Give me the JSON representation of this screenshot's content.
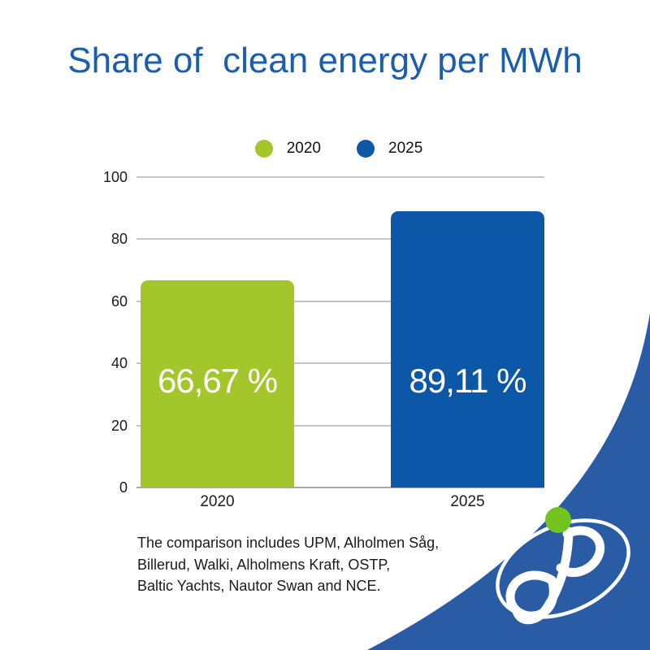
{
  "title": "Share of  clean energy per MWh",
  "footnote": "The comparison includes UPM, Alholmen Såg,\nBillerud, Walki, Alholmens Kraft, OSTP,\nBaltic Yachts, Nautor Swan and NCE.",
  "brand": {
    "title_color": "#1A5EAD",
    "swoosh_color": "#2A5CA6",
    "logo_green": "#74C421",
    "logo_white": "#FFFFFF"
  },
  "chart_data": {
    "type": "bar",
    "title": "Share of clean energy per MWh",
    "categories": [
      "2020",
      "2025"
    ],
    "values": [
      66.67,
      89.11
    ],
    "value_labels": [
      "66,67 %",
      "89,11 %"
    ],
    "series_colors": [
      "#A3C62B",
      "#0D57A8"
    ],
    "legend": [
      {
        "label": "2020",
        "color": "#A3C62B"
      },
      {
        "label": "2025",
        "color": "#0D57A8"
      }
    ],
    "legend_position": "top",
    "xlabel": "",
    "ylabel": "",
    "ylim": [
      0,
      100
    ],
    "yticks": [
      0,
      20,
      40,
      60,
      80,
      100
    ],
    "grid": true,
    "gridline_color": "#C4C4C4",
    "value_label_color": "#FFFFFF"
  }
}
